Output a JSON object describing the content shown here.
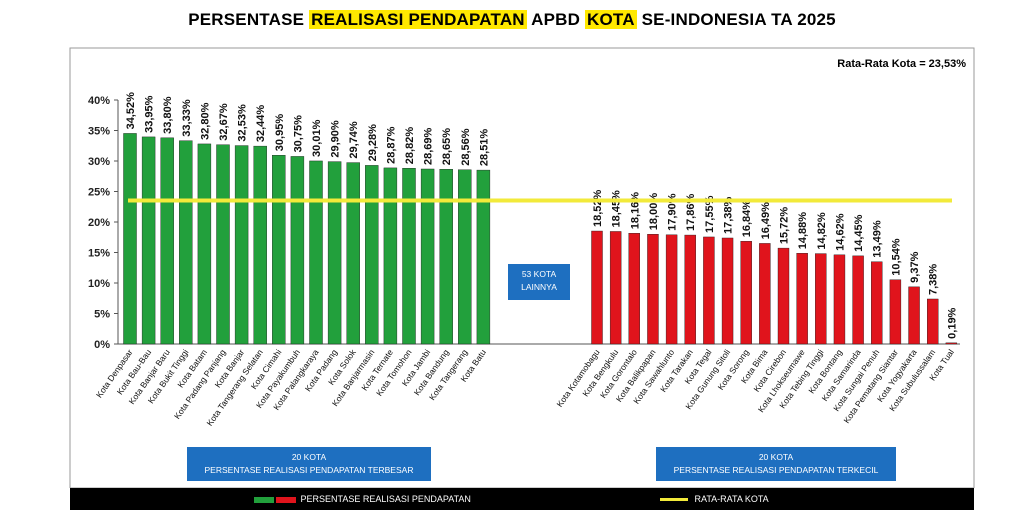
{
  "title": {
    "part1": "PERSENTASE ",
    "part2": "REALISASI PENDAPATAN",
    "part3": " APBD ",
    "part4": "KOTA",
    "part5": " SE-INDONESIA TA 2025"
  },
  "average_label": "Rata-Rata Kota = 23,53%",
  "middle_box": {
    "line1": "53 KOTA",
    "line2": "LAINNYA"
  },
  "left_box": {
    "line1": "20 KOTA",
    "line2": "PERSENTASE REALISASI PENDAPATAN TERBESAR"
  },
  "right_box": {
    "line1": "20 KOTA",
    "line2": "PERSENTASE REALISASI PENDAPATAN TERKECIL"
  },
  "legend": {
    "series_label": "PERSENTASE REALISASI PENDAPATAN",
    "average_line_label": "RATA-RATA KOTA"
  },
  "colors": {
    "top": "#22a03c",
    "bottom": "#e0141c",
    "average_line": "#f2ea3a",
    "box": "#1e6fc0"
  },
  "chart_data": {
    "type": "bar",
    "y_ticks": [
      "0%",
      "5%",
      "10%",
      "15%",
      "20%",
      "25%",
      "30%",
      "35%",
      "40%"
    ],
    "ylim": [
      0,
      40
    ],
    "average": 23.53,
    "top_series": {
      "categories": [
        "Kota Denpasar",
        "Kota Bau-Bau",
        "Kota Banjar Baru",
        "Kota Bukit Tinggi",
        "Kota Batam",
        "Kota Padang Panjang",
        "Kota Banjar",
        "Kota Tangerang Selatan",
        "Kota Cimahi",
        "Kota Payakumbuh",
        "Kota Palangkaraya",
        "Kota Padang",
        "Kota Solok",
        "Kota Banjarmasin",
        "Kota Ternate",
        "Kota Tomohon",
        "Kota Jambi",
        "Kota Bandung",
        "Kota Tangerang",
        "Kota Batu"
      ],
      "values": [
        34.52,
        33.95,
        33.8,
        33.33,
        32.8,
        32.67,
        32.53,
        32.44,
        30.95,
        30.75,
        30.01,
        29.9,
        29.74,
        29.28,
        28.87,
        28.82,
        28.69,
        28.65,
        28.56,
        28.51
      ],
      "labels": [
        "34,52%",
        "33,95%",
        "33,80%",
        "33,33%",
        "32,80%",
        "32,67%",
        "32,53%",
        "32,44%",
        "30,95%",
        "30,75%",
        "30,01%",
        "29,90%",
        "29,74%",
        "29,28%",
        "28,87%",
        "28,82%",
        "28,69%",
        "28,65%",
        "28,56%",
        "28,51%"
      ]
    },
    "bottom_series": {
      "categories": [
        "Kota Kotamobagu",
        "Kota Bengkulu",
        "Kota Gorontalo",
        "Kota Balikpapan",
        "Kota Sawahlunto",
        "Kota Tarakan",
        "Kota Tegal",
        "Kota Gunung Sitoli",
        "Kota Sorong",
        "Kota Bima",
        "Kota Cirebon",
        "Kota Lhokseumawe",
        "Kota Tebing Tinggi",
        "Kota Bontang",
        "Kota Samarinda",
        "Kota Sungai Penuh",
        "Kota Pematang Siantar",
        "Kota Yogyakarta",
        "Kota Subulussalam",
        "Kota Tual"
      ],
      "values": [
        18.52,
        18.45,
        18.16,
        18.0,
        17.9,
        17.86,
        17.55,
        17.38,
        16.84,
        16.49,
        15.72,
        14.88,
        14.82,
        14.62,
        14.45,
        13.49,
        10.54,
        9.37,
        7.38,
        0.19
      ],
      "labels": [
        "18,52%",
        "18,45%",
        "18,16%",
        "18,00%",
        "17,90%",
        "17,86%",
        "17,55%",
        "17,38%",
        "16,84%",
        "16,49%",
        "15,72%",
        "14,88%",
        "14,82%",
        "14,62%",
        "14,45%",
        "13,49%",
        "10,54%",
        "9,37%",
        "7,38%",
        "0,19%"
      ]
    }
  }
}
